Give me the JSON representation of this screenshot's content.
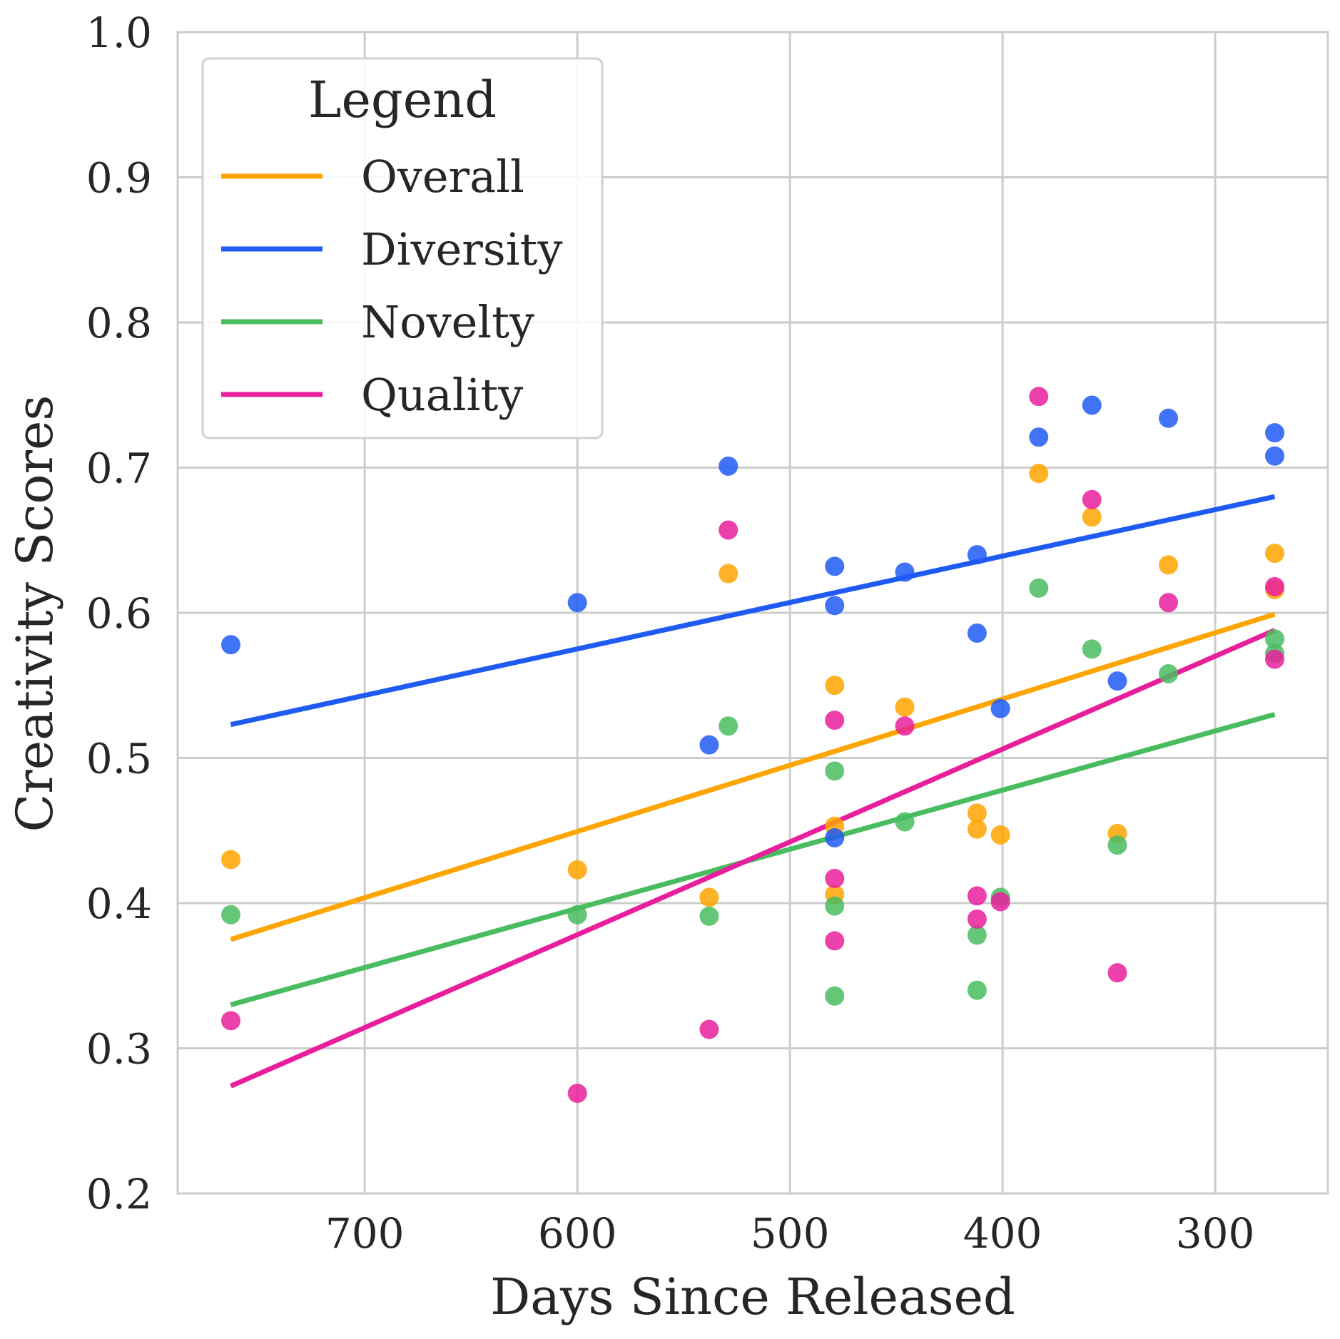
{
  "chart_data": {
    "type": "scatter",
    "xlabel": "Days Since Released",
    "ylabel": "Creativity Scores",
    "xlim": [
      788,
      247
    ],
    "ylim": [
      0.2,
      1.0
    ],
    "x_inverted": true,
    "grid": true,
    "xticks": [
      700,
      600,
      500,
      400,
      300
    ],
    "xtick_labels": [
      "700",
      "600",
      "500",
      "400",
      "300"
    ],
    "yticks": [
      0.2,
      0.3,
      0.4,
      0.5,
      0.6,
      0.7,
      0.8,
      0.9,
      1.0
    ],
    "ytick_labels": [
      "0.2",
      "0.3",
      "0.4",
      "0.5",
      "0.6",
      "0.7",
      "0.8",
      "0.9",
      "1.0"
    ],
    "legend": {
      "title": "Legend",
      "position": "top-left"
    },
    "series": [
      {
        "name": "Overall",
        "color": "#FFA500",
        "points": [
          [
            763,
            0.43
          ],
          [
            600,
            0.423
          ],
          [
            538,
            0.404
          ],
          [
            529,
            0.627
          ],
          [
            479,
            0.55
          ],
          [
            479,
            0.453
          ],
          [
            479,
            0.406
          ],
          [
            446,
            0.535
          ],
          [
            412,
            0.462
          ],
          [
            412,
            0.451
          ],
          [
            401,
            0.447
          ],
          [
            383,
            0.696
          ],
          [
            358,
            0.666
          ],
          [
            346,
            0.448
          ],
          [
            322,
            0.633
          ],
          [
            272,
            0.641
          ],
          [
            272,
            0.616
          ]
        ],
        "trend": [
          [
            763,
            0.375
          ],
          [
            272,
            0.599
          ]
        ]
      },
      {
        "name": "Diversity",
        "color": "#1F5BF3",
        "points": [
          [
            763,
            0.578
          ],
          [
            600,
            0.607
          ],
          [
            538,
            0.509
          ],
          [
            529,
            0.701
          ],
          [
            479,
            0.632
          ],
          [
            479,
            0.605
          ],
          [
            479,
            0.445
          ],
          [
            446,
            0.628
          ],
          [
            412,
            0.64
          ],
          [
            412,
            0.586
          ],
          [
            401,
            0.534
          ],
          [
            383,
            0.721
          ],
          [
            358,
            0.743
          ],
          [
            346,
            0.553
          ],
          [
            322,
            0.734
          ],
          [
            272,
            0.724
          ],
          [
            272,
            0.708
          ]
        ],
        "trend": [
          [
            763,
            0.523
          ],
          [
            272,
            0.68
          ]
        ]
      },
      {
        "name": "Novelty",
        "color": "#49BC5F",
        "points": [
          [
            763,
            0.392
          ],
          [
            600,
            0.392
          ],
          [
            538,
            0.391
          ],
          [
            529,
            0.522
          ],
          [
            479,
            0.491
          ],
          [
            479,
            0.398
          ],
          [
            479,
            0.336
          ],
          [
            446,
            0.456
          ],
          [
            412,
            0.378
          ],
          [
            412,
            0.34
          ],
          [
            401,
            0.404
          ],
          [
            383,
            0.617
          ],
          [
            358,
            0.575
          ],
          [
            346,
            0.44
          ],
          [
            322,
            0.558
          ],
          [
            272,
            0.582
          ],
          [
            272,
            0.572
          ]
        ],
        "trend": [
          [
            763,
            0.33
          ],
          [
            272,
            0.53
          ]
        ]
      },
      {
        "name": "Quality",
        "color": "#E91E9C",
        "points": [
          [
            763,
            0.319
          ],
          [
            600,
            0.269
          ],
          [
            538,
            0.313
          ],
          [
            529,
            0.657
          ],
          [
            479,
            0.526
          ],
          [
            479,
            0.417
          ],
          [
            479,
            0.374
          ],
          [
            446,
            0.522
          ],
          [
            412,
            0.405
          ],
          [
            412,
            0.389
          ],
          [
            401,
            0.401
          ],
          [
            383,
            0.749
          ],
          [
            358,
            0.678
          ],
          [
            346,
            0.352
          ],
          [
            322,
            0.607
          ],
          [
            272,
            0.618
          ],
          [
            272,
            0.568
          ]
        ],
        "trend": [
          [
            763,
            0.274
          ],
          [
            272,
            0.588
          ]
        ]
      }
    ]
  }
}
